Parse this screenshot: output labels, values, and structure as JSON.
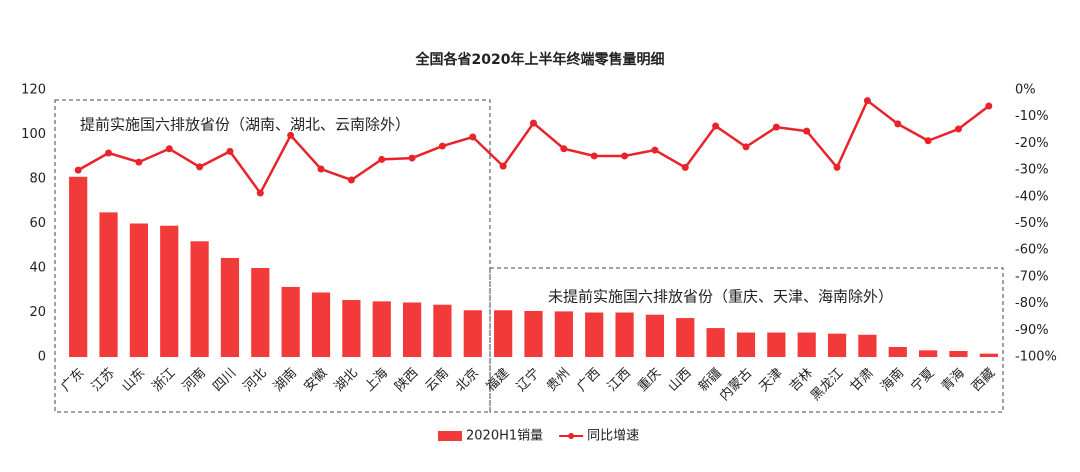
{
  "chart_data": {
    "type": "bar",
    "title": "全国各省2020年上半年终端零售量明细",
    "categories": [
      "广东",
      "江苏",
      "山东",
      "浙江",
      "河南",
      "四川",
      "河北",
      "湖南",
      "安徽",
      "湖北",
      "上海",
      "陕西",
      "云南",
      "北京",
      "福建",
      "辽宁",
      "贵州",
      "广西",
      "江西",
      "重庆",
      "山西",
      "新疆",
      "内蒙古",
      "天津",
      "吉林",
      "黑龙江",
      "甘肃",
      "海南",
      "宁夏",
      "青海",
      "西藏"
    ],
    "series": [
      {
        "name": "2020H1销量",
        "type": "bar",
        "color": "#f23a3a",
        "values": [
          81,
          65,
          60,
          59,
          52,
          44.5,
          40,
          31.5,
          29,
          25.6,
          25,
          24.5,
          23.5,
          21,
          21,
          20.7,
          20.5,
          20,
          20,
          19,
          17.5,
          13,
          11,
          11,
          11,
          10.5,
          10,
          4.5,
          3,
          2.7,
          1.5
        ]
      },
      {
        "name": "同比增速",
        "type": "line",
        "axis": "y2",
        "color": "#e8242a",
        "values": [
          -30,
          -23.6,
          -27,
          -22,
          -28.8,
          -23,
          -38.6,
          -17,
          -29.6,
          -33.7,
          -26,
          -25.5,
          -21,
          -17.6,
          -28.5,
          -12.4,
          -22,
          -24.7,
          -24.7,
          -22.5,
          -29,
          -13.5,
          -21.3,
          -13.9,
          -15.4,
          -29,
          -4,
          -12.7,
          -19,
          -14.6,
          -6
        ]
      }
    ],
    "ylim": [
      0,
      120
    ],
    "yticks": [
      0,
      20,
      40,
      60,
      80,
      100,
      120
    ],
    "y2lim": [
      -100,
      0
    ],
    "y2ticks": [
      {
        "value": 0,
        "label": "0%"
      },
      {
        "value": -10,
        "label": "-10%"
      },
      {
        "value": -20,
        "label": "-20%"
      },
      {
        "value": -30,
        "label": "-30%"
      },
      {
        "value": -40,
        "label": "-40%"
      },
      {
        "value": -50,
        "label": "-50%"
      },
      {
        "value": -60,
        "label": "-60%"
      },
      {
        "value": -70,
        "label": "-70%"
      },
      {
        "value": -80,
        "label": "-80%"
      },
      {
        "value": -90,
        "label": "-90%"
      },
      {
        "value": -100,
        "label": "-100%"
      }
    ],
    "grid": false,
    "annotations": [
      "提前实施国六排放省份（湖南、湖北、云南除外）",
      "未提前实施国六排放省份（重庆、天津、海南除外）"
    ]
  }
}
